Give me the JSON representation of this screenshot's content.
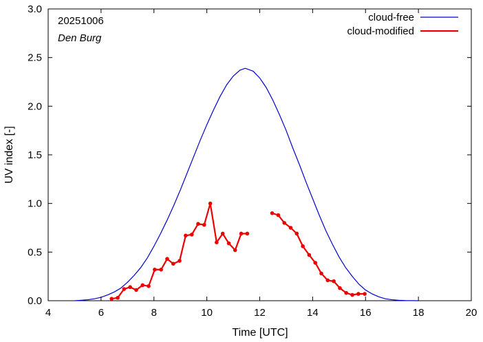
{
  "chart_data": {
    "type": "line",
    "xlabel": "Time  [UTC]",
    "ylabel": "UV index  [-]",
    "xlim": [
      4,
      20
    ],
    "ylim": [
      0,
      3
    ],
    "xticks": [
      4,
      6,
      8,
      10,
      12,
      14,
      16,
      18,
      20
    ],
    "xtick_labels": [
      "4",
      "6",
      "8",
      "10",
      "12",
      "14",
      "16",
      "18",
      "20"
    ],
    "yticks": [
      0,
      0.5,
      1,
      1.5,
      2,
      2.5,
      3
    ],
    "ytick_labels": [
      "0.0",
      "0.5",
      "1.0",
      "1.5",
      "2.0",
      "2.5",
      "3.0"
    ],
    "annotations": {
      "date": "20251006",
      "location": "Den Burg"
    },
    "legend_position": "top-right",
    "series": [
      {
        "name": "cloud-free",
        "color": "#0000cc",
        "style": "line",
        "x": [
          5.0,
          5.25,
          5.5,
          5.75,
          6.0,
          6.25,
          6.5,
          6.75,
          7.0,
          7.25,
          7.5,
          7.75,
          8.0,
          8.25,
          8.5,
          8.75,
          9.0,
          9.25,
          9.5,
          9.75,
          10.0,
          10.25,
          10.5,
          10.75,
          11.0,
          11.25,
          11.45,
          11.75,
          12.0,
          12.25,
          12.5,
          12.75,
          13.0,
          13.25,
          13.5,
          13.75,
          14.0,
          14.25,
          14.5,
          14.75,
          15.0,
          15.25,
          15.5,
          15.75,
          16.0,
          16.25,
          16.5,
          16.75,
          17.0,
          17.25,
          17.5,
          17.75,
          18.0
        ],
        "y": [
          0.0,
          0.005,
          0.01,
          0.02,
          0.035,
          0.06,
          0.09,
          0.13,
          0.19,
          0.26,
          0.34,
          0.44,
          0.56,
          0.69,
          0.83,
          0.98,
          1.14,
          1.31,
          1.48,
          1.65,
          1.81,
          1.96,
          2.1,
          2.22,
          2.31,
          2.37,
          2.39,
          2.36,
          2.29,
          2.19,
          2.06,
          1.91,
          1.75,
          1.57,
          1.4,
          1.22,
          1.05,
          0.88,
          0.72,
          0.58,
          0.45,
          0.34,
          0.25,
          0.17,
          0.11,
          0.07,
          0.04,
          0.02,
          0.01,
          0.005,
          0.002,
          0.001,
          0.0
        ]
      },
      {
        "name": "cloud-modified",
        "color": "#ee0000",
        "style": "line-points",
        "segments": [
          {
            "x": [
              6.4,
              6.63,
              6.87,
              7.1,
              7.33,
              7.57,
              7.8,
              8.03,
              8.27,
              8.5,
              8.73,
              8.97,
              9.2,
              9.43,
              9.67,
              9.9,
              10.13,
              10.37,
              10.6,
              10.83,
              11.07,
              11.3,
              11.53
            ],
            "y": [
              0.02,
              0.03,
              0.12,
              0.14,
              0.11,
              0.16,
              0.15,
              0.32,
              0.32,
              0.43,
              0.38,
              0.41,
              0.67,
              0.68,
              0.79,
              0.78,
              1.0,
              0.6,
              0.69,
              0.59,
              0.52,
              0.69,
              0.69
            ]
          },
          {
            "x": [
              12.47,
              12.7,
              12.93,
              13.17,
              13.4,
              13.63,
              13.87,
              14.1,
              14.33,
              14.57,
              14.8,
              15.03,
              15.27,
              15.5,
              15.73,
              15.97
            ],
            "y": [
              0.9,
              0.88,
              0.8,
              0.75,
              0.69,
              0.56,
              0.47,
              0.39,
              0.28,
              0.21,
              0.2,
              0.13,
              0.08,
              0.06,
              0.07,
              0.07
            ]
          }
        ]
      }
    ]
  }
}
